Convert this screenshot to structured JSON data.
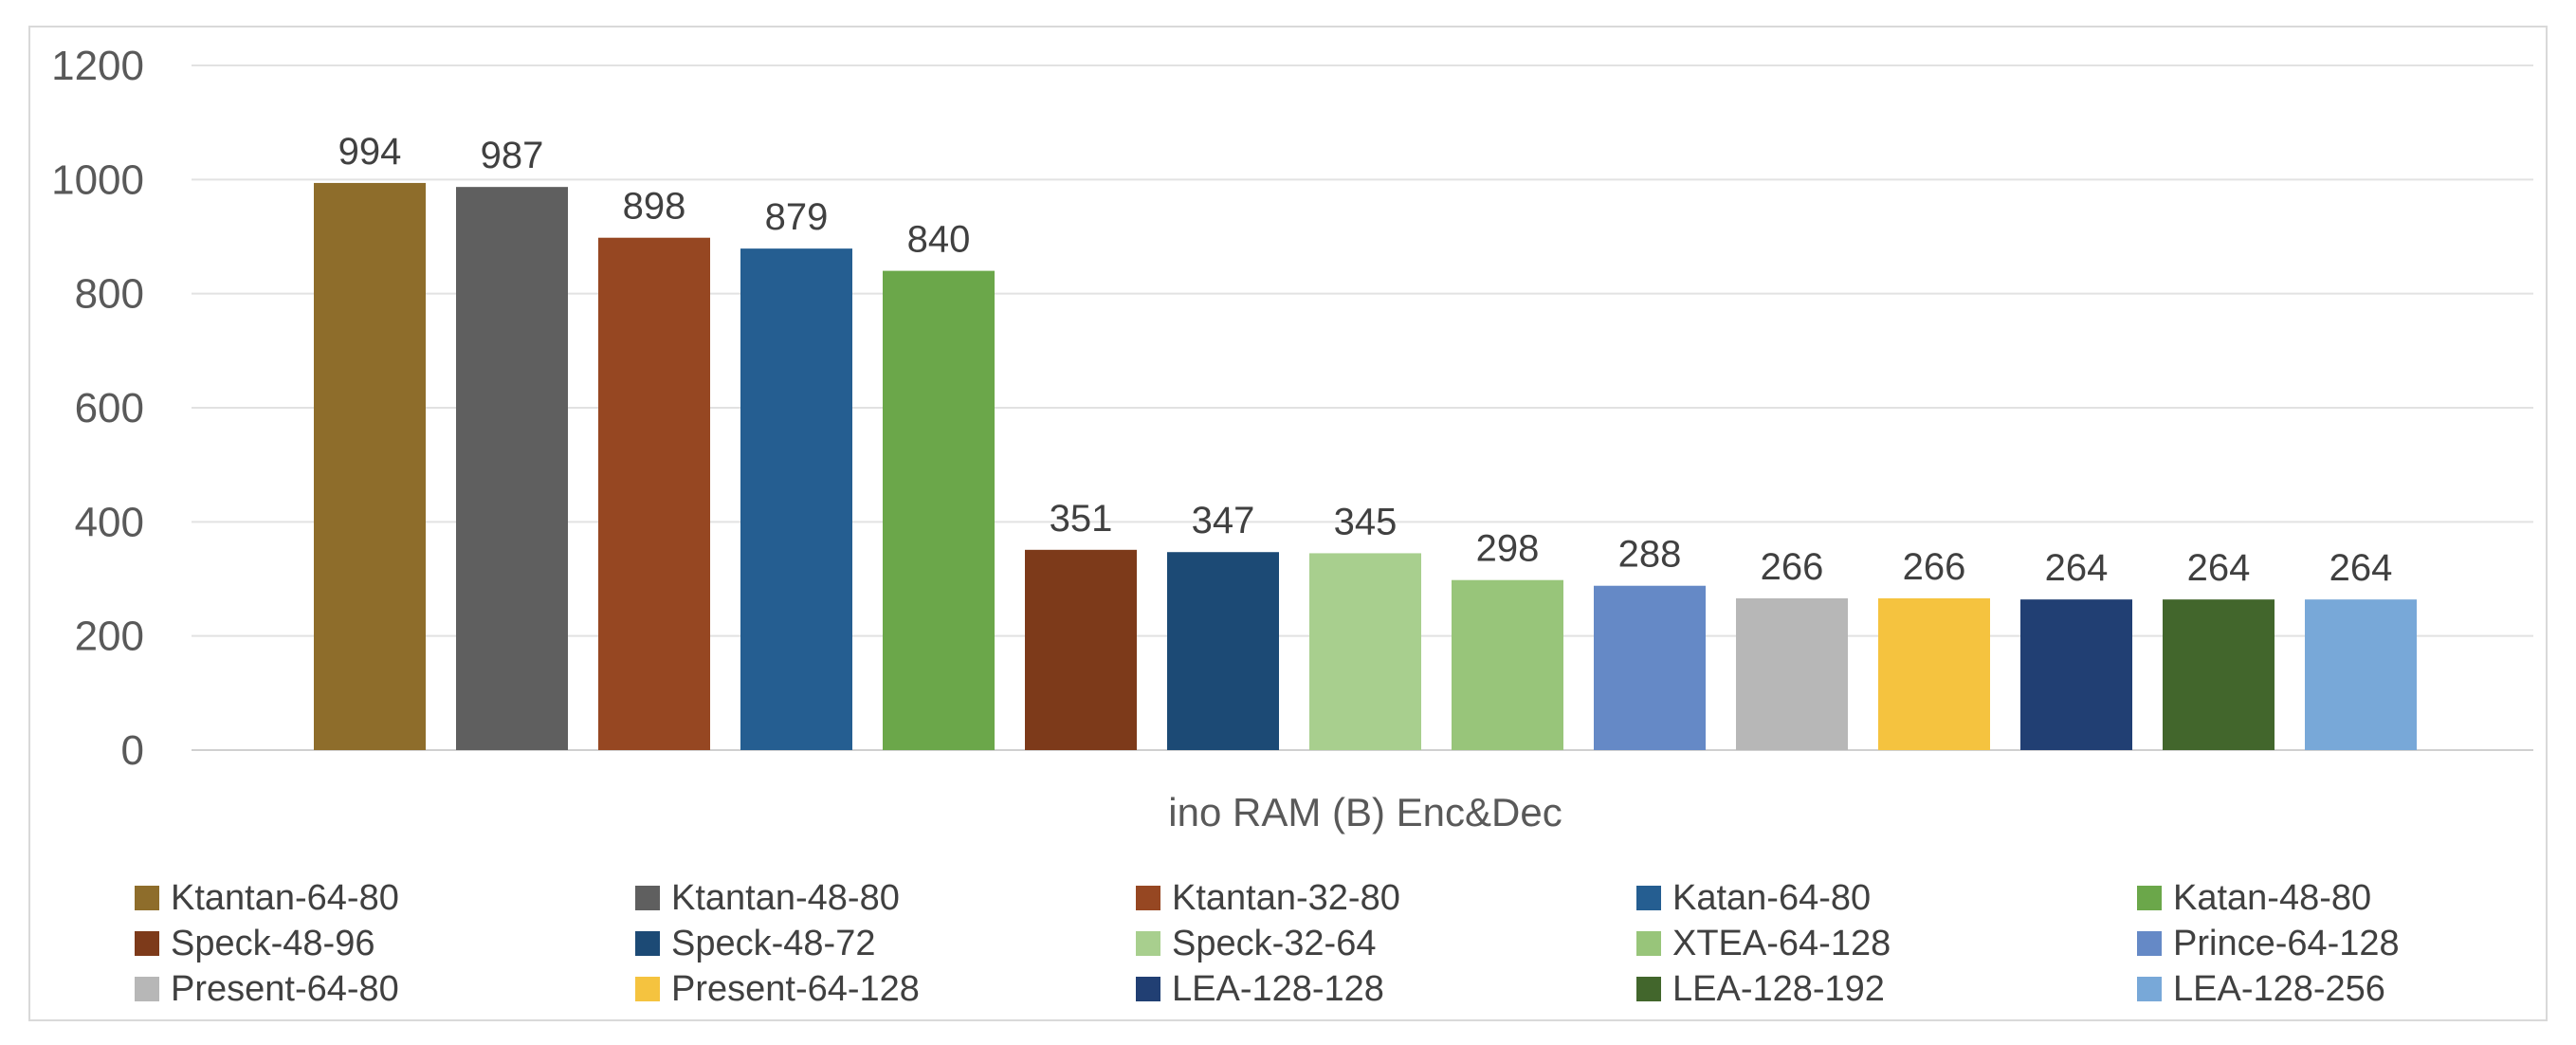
{
  "chart_data": {
    "type": "bar",
    "title": "",
    "xlabel": "ino RAM (B) Enc&Dec",
    "ylabel": "",
    "ylim": [
      0,
      1200
    ],
    "yticks": [
      0,
      200,
      400,
      600,
      800,
      1000,
      1200
    ],
    "grid": true,
    "legend_position": "bottom",
    "categories": [
      "ino RAM (B) Enc&Dec"
    ],
    "series": [
      {
        "name": "Ktantan-64-80",
        "values": [
          994
        ],
        "color": "#8E6D2B"
      },
      {
        "name": "Ktantan-48-80",
        "values": [
          987
        ],
        "color": "#5F5F5F"
      },
      {
        "name": "Ktantan-32-80",
        "values": [
          898
        ],
        "color": "#964722"
      },
      {
        "name": "Katan-64-80",
        "values": [
          879
        ],
        "color": "#255E91"
      },
      {
        "name": "Katan-48-80",
        "values": [
          840
        ],
        "color": "#6BA74A"
      },
      {
        "name": "Speck-48-96",
        "values": [
          351
        ],
        "color": "#7D3A1A"
      },
      {
        "name": "Speck-48-72",
        "values": [
          347
        ],
        "color": "#1C4A75"
      },
      {
        "name": "Speck-32-64",
        "values": [
          345
        ],
        "color": "#A8CF8E"
      },
      {
        "name": "XTEA-64-128",
        "values": [
          298
        ],
        "color": "#98C57A"
      },
      {
        "name": "Prince-64-128",
        "values": [
          288
        ],
        "color": "#6589C6"
      },
      {
        "name": "Present-64-80",
        "values": [
          266
        ],
        "color": "#B7B7B7"
      },
      {
        "name": "Present-64-128",
        "values": [
          266
        ],
        "color": "#F5C33F"
      },
      {
        "name": "LEA-128-128",
        "values": [
          264
        ],
        "color": "#213F73"
      },
      {
        "name": "LEA-128-192",
        "values": [
          264
        ],
        "color": "#42662C"
      },
      {
        "name": "LEA-128-256",
        "values": [
          264
        ],
        "color": "#78A8D8"
      }
    ]
  }
}
